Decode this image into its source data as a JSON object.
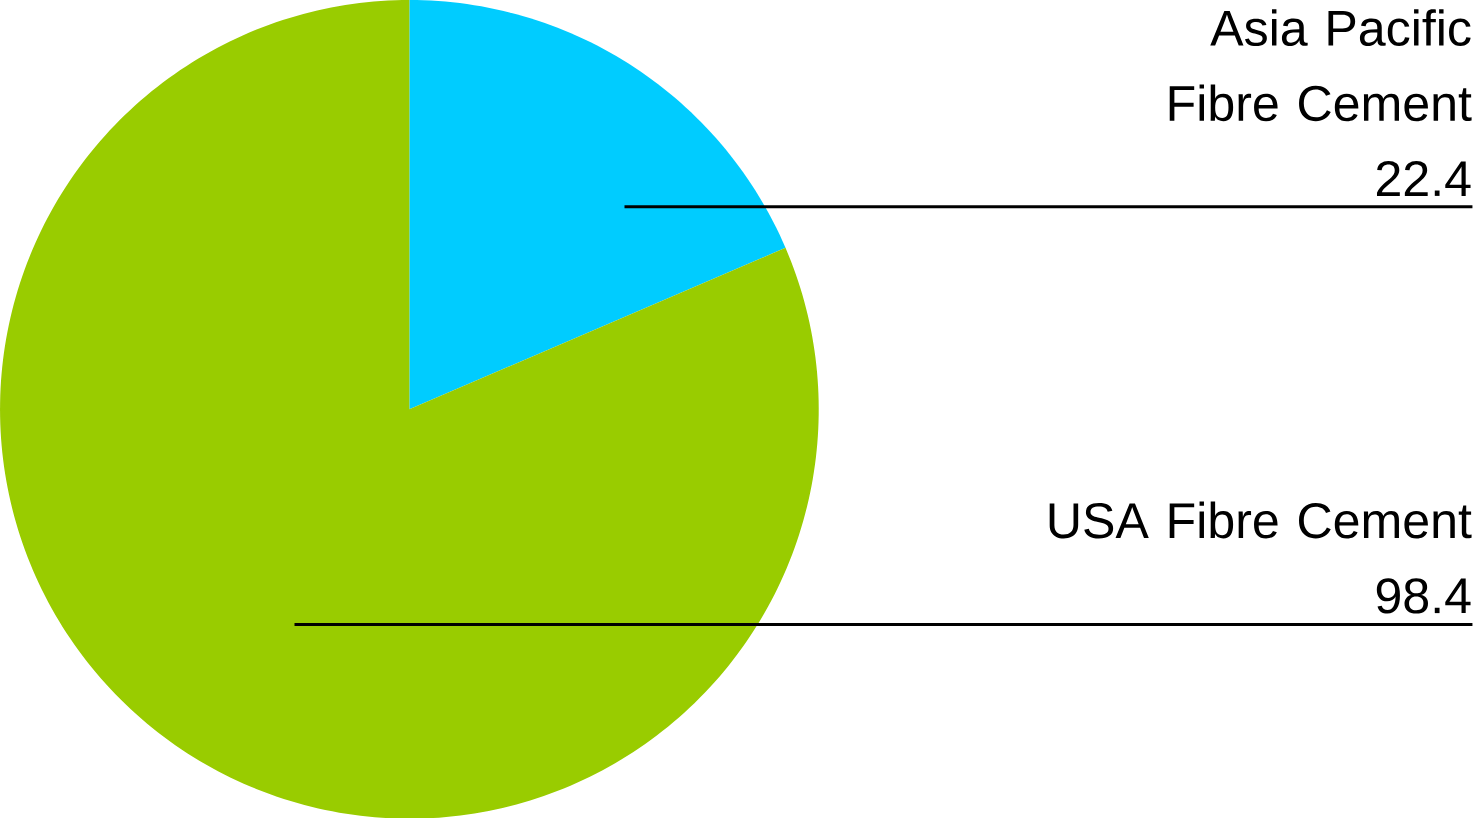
{
  "chart_data": {
    "type": "pie",
    "categories": [
      "Asia Pacific Fibre Cement",
      "USA Fibre Cement"
    ],
    "values": [
      22.4,
      98.4
    ],
    "colors": [
      "#00ccff",
      "#99cc00"
    ],
    "data_labels": true
  }
}
